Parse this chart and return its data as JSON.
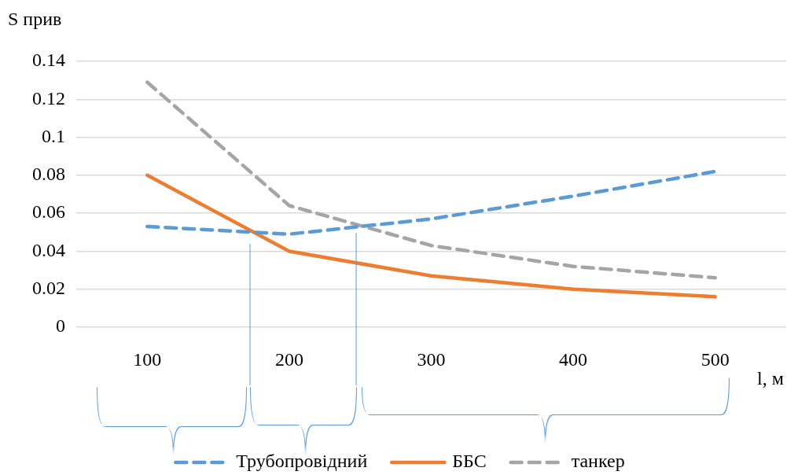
{
  "chart_data": {
    "type": "line",
    "xlabel": "l, м",
    "ylabel": "S прив",
    "categories": [
      "100",
      "200",
      "300",
      "400",
      "500"
    ],
    "series": [
      {
        "name": "Трубопровідний",
        "color": "#5b9bd5",
        "line_style": "dashed",
        "values": [
          0.053,
          0.049,
          0.057,
          0.069,
          0.082
        ]
      },
      {
        "name": "ББС",
        "color": "#ed7d31",
        "line_style": "solid",
        "values": [
          0.08,
          0.04,
          0.027,
          0.02,
          0.016
        ]
      },
      {
        "name": "танкер",
        "color": "#a5a5a5",
        "line_style": "dashed",
        "values": [
          0.129,
          0.064,
          0.043,
          0.032,
          0.026
        ]
      }
    ],
    "ylim": [
      0,
      0.14
    ],
    "yticks": [
      0,
      0.02,
      0.04,
      0.06,
      0.08,
      0.1,
      0.12,
      0.14
    ],
    "grid": "y",
    "legend": "bottom",
    "marker": "none"
  }
}
